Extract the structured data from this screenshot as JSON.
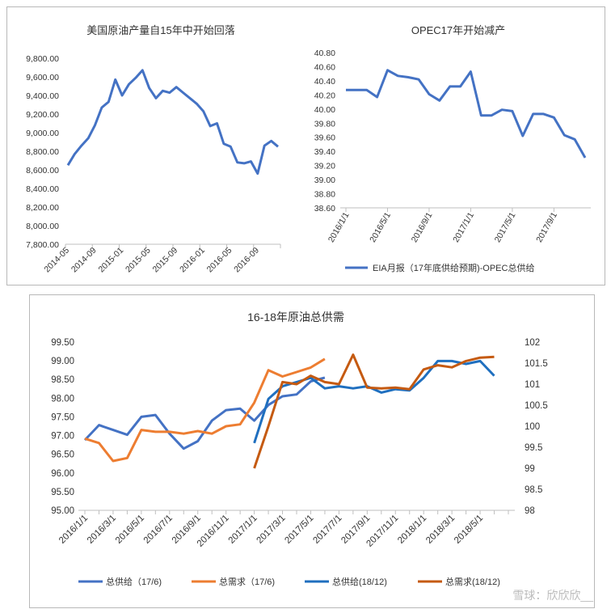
{
  "colors": {
    "blue": "#4472C4",
    "orange": "#ED7D31",
    "blue2": "#1F6FBF",
    "orange2": "#C55A11",
    "axis": "#BFBFBF"
  },
  "chart_data": [
    {
      "type": "line",
      "title": "美国原油产量自15年中开始回落",
      "ylim": [
        7800,
        9800
      ],
      "yticks": [
        "9,800.00",
        "9,600.00",
        "9,400.00",
        "9,200.00",
        "9,000.00",
        "8,800.00",
        "8,600.00",
        "8,400.00",
        "8,200.00",
        "8,000.00",
        "7,800.00"
      ],
      "xticks": [
        "2014-05",
        "2014-09",
        "2015-01",
        "2015-05",
        "2015-09",
        "2016-01",
        "2016-05",
        "2016-09"
      ],
      "series": [
        {
          "name": "美国原油产量",
          "values": [
            8650,
            8770,
            8860,
            8940,
            9080,
            9270,
            9330,
            9570,
            9400,
            9520,
            9590,
            9670,
            9480,
            9370,
            9450,
            9430,
            9490,
            9430,
            9370,
            9310,
            9230,
            9070,
            9100,
            8880,
            8850,
            8680,
            8670,
            8690,
            8560,
            8860,
            8910,
            8850
          ]
        }
      ]
    },
    {
      "type": "line",
      "title": "OPEC17年开始减产",
      "ylim": [
        38.6,
        40.8
      ],
      "yticks": [
        "40.80",
        "40.60",
        "40.40",
        "40.20",
        "40.00",
        "39.80",
        "39.60",
        "39.40",
        "39.20",
        "39.00",
        "38.80",
        "38.60"
      ],
      "xticks": [
        "2016/1/1",
        "2016/5/1",
        "2016/9/1",
        "2017/1/1",
        "2017/5/1",
        "2017/9/1"
      ],
      "legend": [
        "EIA月报（17年底供给预期)-OPEC总供给"
      ],
      "series": [
        {
          "name": "EIA月报（17年底供给预期)-OPEC总供给",
          "values": [
            40.27,
            40.27,
            40.27,
            40.17,
            40.55,
            40.47,
            40.45,
            40.42,
            40.21,
            40.12,
            40.32,
            40.32,
            40.53,
            39.91,
            39.91,
            39.99,
            39.97,
            39.62,
            39.93,
            39.93,
            39.88,
            39.63,
            39.57,
            39.31
          ]
        }
      ]
    },
    {
      "type": "line",
      "title": "16-18年原油总供需",
      "ylim": [
        95.0,
        99.5
      ],
      "y2lim": [
        98,
        102
      ],
      "yticks": [
        "99.50",
        "99.00",
        "98.50",
        "98.00",
        "97.50",
        "97.00",
        "96.50",
        "96.00",
        "95.50",
        "95.00"
      ],
      "y2ticks": [
        "102",
        "101.5",
        "101",
        "100.5",
        "100",
        "99.5",
        "99",
        "98.5",
        "98"
      ],
      "xticks": [
        "2016/1/1",
        "2016/3/1",
        "2016/5/1",
        "2016/7/1",
        "2016/9/1",
        "2016/11/1",
        "2017/1/1",
        "2017/3/1",
        "2017/5/1",
        "2017/7/1",
        "2017/9/1",
        "2017/11/1",
        "2018/1/1",
        "2018/3/1",
        "2018/5/1"
      ],
      "legend": [
        "总供给（17/6)",
        "总需求（17/6)",
        "总供给(18/12)",
        "总需求(18/12)"
      ],
      "series": [
        {
          "name": "总供给（17/6)",
          "axis": "left",
          "start": 0,
          "values": [
            96.88,
            97.28,
            97.15,
            97.02,
            97.5,
            97.55,
            97.05,
            96.65,
            96.85,
            97.4,
            97.68,
            97.72,
            97.4,
            97.82,
            98.05,
            98.1,
            98.45,
            98.55
          ]
        },
        {
          "name": "总需求（17/6)",
          "axis": "left",
          "start": 0,
          "values": [
            96.92,
            96.8,
            96.32,
            96.4,
            97.15,
            97.1,
            97.1,
            97.05,
            97.12,
            97.05,
            97.25,
            97.3,
            97.88,
            98.75,
            98.58,
            98.7,
            98.82,
            99.05
          ]
        },
        {
          "name": "总供给(18/12)",
          "axis": "right",
          "start": 12,
          "values": [
            99.6,
            100.65,
            100.95,
            101.05,
            101.15,
            100.9,
            100.95,
            100.9,
            100.95,
            100.8,
            100.88,
            100.85,
            101.15,
            101.55,
            101.55,
            101.48,
            101.55,
            101.2
          ]
        },
        {
          "name": "总需求(18/12)",
          "axis": "right",
          "start": 12,
          "values": [
            99.0,
            100.0,
            101.05,
            101.0,
            101.2,
            101.05,
            101.0,
            101.7,
            100.92,
            100.9,
            100.92,
            100.88,
            101.35,
            101.45,
            101.4,
            101.55,
            101.63,
            101.65
          ]
        }
      ]
    }
  ],
  "watermark": "雪球：欣欣欣__"
}
